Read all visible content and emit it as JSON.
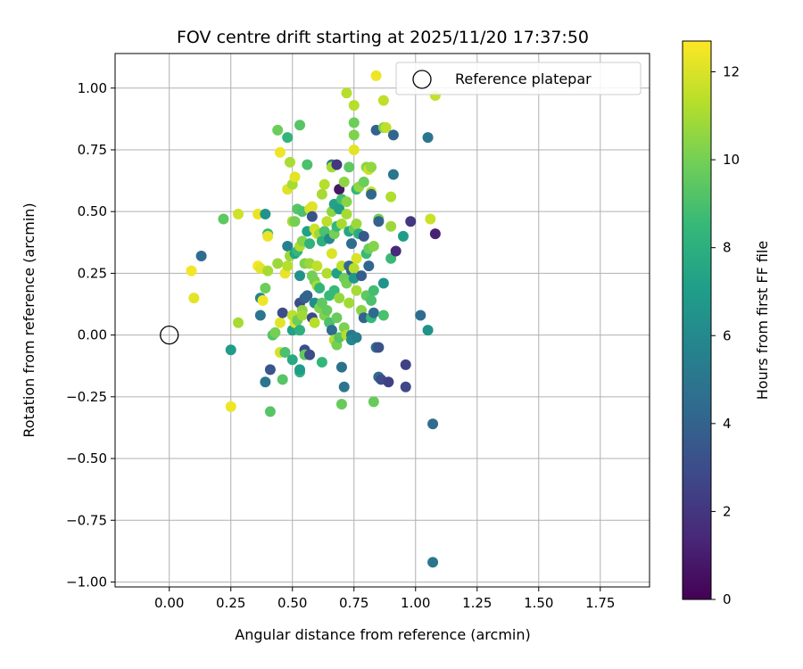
{
  "chart_data": {
    "type": "scatter",
    "title": "FOV centre drift starting at 2025/11/20 17:37:50",
    "xlabel": "Angular distance from reference (arcmin)",
    "ylabel": "Rotation from reference (arcmin)",
    "xlim": [
      -0.22,
      1.95
    ],
    "ylim": [
      -1.02,
      1.14
    ],
    "xticks": [
      0.0,
      0.25,
      0.5,
      0.75,
      1.0,
      1.25,
      1.5,
      1.75
    ],
    "xtick_labels": [
      "0.00",
      "0.25",
      "0.50",
      "0.75",
      "1.00",
      "1.25",
      "1.50",
      "1.75"
    ],
    "yticks": [
      -1.0,
      -0.75,
      -0.5,
      -0.25,
      0.0,
      0.25,
      0.5,
      0.75,
      1.0
    ],
    "ytick_labels": [
      "−1.00",
      "−0.75",
      "−0.50",
      "−0.25",
      "0.00",
      "0.25",
      "0.50",
      "0.75",
      "1.00"
    ],
    "grid": true,
    "legend": {
      "placement": "top-right",
      "entries": [
        "Reference platepar"
      ]
    },
    "reference_point": {
      "x": 0.0,
      "y": 0.0
    },
    "colorbar": {
      "label": "Hours from first FF file",
      "colormap": "viridis",
      "range": [
        0,
        12.7
      ],
      "ticks": [
        0,
        2,
        4,
        6,
        8,
        10,
        12
      ],
      "tick_labels": [
        "0",
        "2",
        "4",
        "6",
        "8",
        "10",
        "12"
      ]
    },
    "colormap_stops": [
      "#440154",
      "#482878",
      "#3e4989",
      "#31688e",
      "#26828e",
      "#1f9e89",
      "#35b779",
      "#6ece58",
      "#b5de2b",
      "#fde725"
    ],
    "points": [
      {
        "x": 0.09,
        "y": 0.26,
        "c": 12.5
      },
      {
        "x": 0.1,
        "y": 0.15,
        "c": 12.2
      },
      {
        "x": 0.13,
        "y": 0.32,
        "c": 4.5
      },
      {
        "x": 0.22,
        "y": 0.47,
        "c": 9.5
      },
      {
        "x": 0.25,
        "y": -0.29,
        "c": 12.4
      },
      {
        "x": 0.25,
        "y": -0.06,
        "c": 7.0
      },
      {
        "x": 0.28,
        "y": 0.49,
        "c": 11.8
      },
      {
        "x": 0.28,
        "y": 0.05,
        "c": 11.0
      },
      {
        "x": 0.36,
        "y": 0.49,
        "c": 12.3
      },
      {
        "x": 0.36,
        "y": 0.28,
        "c": 12.6
      },
      {
        "x": 0.37,
        "y": 0.15,
        "c": 5.8
      },
      {
        "x": 0.37,
        "y": 0.27,
        "c": 12.2
      },
      {
        "x": 0.37,
        "y": 0.08,
        "c": 5.0
      },
      {
        "x": 0.38,
        "y": 0.14,
        "c": 12.4
      },
      {
        "x": 0.39,
        "y": 0.19,
        "c": 9.8
      },
      {
        "x": 0.39,
        "y": 0.49,
        "c": 6.5
      },
      {
        "x": 0.39,
        "y": -0.19,
        "c": 5.0
      },
      {
        "x": 0.4,
        "y": 0.41,
        "c": 8.5
      },
      {
        "x": 0.4,
        "y": 0.4,
        "c": 12.3
      },
      {
        "x": 0.4,
        "y": 0.26,
        "c": 11.0
      },
      {
        "x": 0.41,
        "y": -0.14,
        "c": 3.4
      },
      {
        "x": 0.41,
        "y": -0.31,
        "c": 9.3
      },
      {
        "x": 0.42,
        "y": 0.0,
        "c": 9.2
      },
      {
        "x": 0.43,
        "y": 0.01,
        "c": 10.0
      },
      {
        "x": 0.44,
        "y": 0.83,
        "c": 9.8
      },
      {
        "x": 0.44,
        "y": 0.29,
        "c": 10.8
      },
      {
        "x": 0.45,
        "y": 0.74,
        "c": 12.4
      },
      {
        "x": 0.45,
        "y": -0.07,
        "c": 11.9
      },
      {
        "x": 0.45,
        "y": 0.05,
        "c": 12.2
      },
      {
        "x": 0.46,
        "y": 0.09,
        "c": 3.0
      },
      {
        "x": 0.46,
        "y": -0.18,
        "c": 9.3
      },
      {
        "x": 0.47,
        "y": 0.25,
        "c": 12.3
      },
      {
        "x": 0.47,
        "y": -0.07,
        "c": 9.0
      },
      {
        "x": 0.48,
        "y": 0.36,
        "c": 5.6
      },
      {
        "x": 0.48,
        "y": 0.8,
        "c": 8.3
      },
      {
        "x": 0.48,
        "y": 0.59,
        "c": 12.1
      },
      {
        "x": 0.48,
        "y": 0.28,
        "c": 11.3
      },
      {
        "x": 0.49,
        "y": 0.7,
        "c": 11.1
      },
      {
        "x": 0.49,
        "y": 0.32,
        "c": 10.8
      },
      {
        "x": 0.5,
        "y": 0.61,
        "c": 11.0
      },
      {
        "x": 0.5,
        "y": 0.46,
        "c": 11.0
      },
      {
        "x": 0.5,
        "y": 0.08,
        "c": 11.4
      },
      {
        "x": 0.5,
        "y": 0.02,
        "c": 7.3
      },
      {
        "x": 0.5,
        "y": -0.1,
        "c": 7.7
      },
      {
        "x": 0.51,
        "y": 0.64,
        "c": 12.2
      },
      {
        "x": 0.51,
        "y": 0.46,
        "c": 10.0
      },
      {
        "x": 0.51,
        "y": 0.33,
        "c": 7.4
      },
      {
        "x": 0.51,
        "y": 0.05,
        "c": 12.0
      },
      {
        "x": 0.52,
        "y": 0.51,
        "c": 9.3
      },
      {
        "x": 0.52,
        "y": 0.34,
        "c": 8.4
      },
      {
        "x": 0.52,
        "y": 0.06,
        "c": 9.8
      },
      {
        "x": 0.53,
        "y": 0.85,
        "c": 9.3
      },
      {
        "x": 0.53,
        "y": 0.36,
        "c": 11.2
      },
      {
        "x": 0.53,
        "y": 0.24,
        "c": 6.4
      },
      {
        "x": 0.53,
        "y": 0.13,
        "c": 3.0
      },
      {
        "x": 0.53,
        "y": 0.02,
        "c": 8.0
      },
      {
        "x": 0.53,
        "y": -0.15,
        "c": 8.3
      },
      {
        "x": 0.53,
        "y": -0.14,
        "c": 7.0
      },
      {
        "x": 0.54,
        "y": 0.5,
        "c": 9.0
      },
      {
        "x": 0.54,
        "y": 0.38,
        "c": 10.3
      },
      {
        "x": 0.54,
        "y": 0.1,
        "c": 10.5
      },
      {
        "x": 0.54,
        "y": 0.08,
        "c": 10.9
      },
      {
        "x": 0.55,
        "y": 0.29,
        "c": 10.2
      },
      {
        "x": 0.55,
        "y": 0.15,
        "c": 4.0
      },
      {
        "x": 0.55,
        "y": -0.06,
        "c": 3.0
      },
      {
        "x": 0.55,
        "y": -0.08,
        "c": 9.6
      },
      {
        "x": 0.56,
        "y": 0.69,
        "c": 9.0
      },
      {
        "x": 0.56,
        "y": 0.42,
        "c": 7.2
      },
      {
        "x": 0.56,
        "y": 0.16,
        "c": 4.1
      },
      {
        "x": 0.57,
        "y": 0.51,
        "c": 11.9
      },
      {
        "x": 0.57,
        "y": 0.37,
        "c": 8.2
      },
      {
        "x": 0.57,
        "y": 0.29,
        "c": 10.8
      },
      {
        "x": 0.57,
        "y": -0.08,
        "c": 3.0
      },
      {
        "x": 0.58,
        "y": 0.52,
        "c": 12.1
      },
      {
        "x": 0.58,
        "y": 0.48,
        "c": 3.2
      },
      {
        "x": 0.58,
        "y": 0.24,
        "c": 10.0
      },
      {
        "x": 0.58,
        "y": 0.07,
        "c": 2.8
      },
      {
        "x": 0.59,
        "y": 0.43,
        "c": 11.7
      },
      {
        "x": 0.59,
        "y": 0.22,
        "c": 10.0
      },
      {
        "x": 0.59,
        "y": 0.13,
        "c": 6.2
      },
      {
        "x": 0.59,
        "y": 0.05,
        "c": 11.3
      },
      {
        "x": 0.6,
        "y": 0.41,
        "c": 12.1
      },
      {
        "x": 0.6,
        "y": 0.28,
        "c": 11.5
      },
      {
        "x": 0.6,
        "y": 0.2,
        "c": 11.0
      },
      {
        "x": 0.61,
        "y": 0.41,
        "c": 10.8
      },
      {
        "x": 0.61,
        "y": 0.19,
        "c": 8.3
      },
      {
        "x": 0.61,
        "y": 0.11,
        "c": 10.2
      },
      {
        "x": 0.62,
        "y": 0.57,
        "c": 11.0
      },
      {
        "x": 0.62,
        "y": 0.38,
        "c": 8.0
      },
      {
        "x": 0.62,
        "y": 0.13,
        "c": 9.5
      },
      {
        "x": 0.62,
        "y": -0.11,
        "c": 8.4
      },
      {
        "x": 0.63,
        "y": 0.61,
        "c": 11.3
      },
      {
        "x": 0.63,
        "y": 0.42,
        "c": 9.0
      },
      {
        "x": 0.63,
        "y": 0.08,
        "c": 10.2
      },
      {
        "x": 0.64,
        "y": 0.46,
        "c": 11.4
      },
      {
        "x": 0.64,
        "y": 0.25,
        "c": 11.2
      },
      {
        "x": 0.64,
        "y": 0.1,
        "c": 9.6
      },
      {
        "x": 0.65,
        "y": 0.39,
        "c": 6.0
      },
      {
        "x": 0.65,
        "y": 0.16,
        "c": 8.5
      },
      {
        "x": 0.65,
        "y": 0.05,
        "c": 9.0
      },
      {
        "x": 0.66,
        "y": 0.69,
        "c": 5.0
      },
      {
        "x": 0.66,
        "y": 0.68,
        "c": 11.0
      },
      {
        "x": 0.66,
        "y": 0.5,
        "c": 10.5
      },
      {
        "x": 0.66,
        "y": 0.33,
        "c": 12.0
      },
      {
        "x": 0.66,
        "y": 0.02,
        "c": 4.5
      },
      {
        "x": 0.67,
        "y": 0.53,
        "c": 7.3
      },
      {
        "x": 0.67,
        "y": 0.41,
        "c": 10.0
      },
      {
        "x": 0.67,
        "y": 0.18,
        "c": 8.5
      },
      {
        "x": 0.67,
        "y": -0.02,
        "c": 11.3
      },
      {
        "x": 0.68,
        "y": 0.69,
        "c": 2.0
      },
      {
        "x": 0.68,
        "y": 0.44,
        "c": 8.5
      },
      {
        "x": 0.68,
        "y": 0.25,
        "c": 7.2
      },
      {
        "x": 0.68,
        "y": 0.07,
        "c": 9.7
      },
      {
        "x": 0.68,
        "y": -0.04,
        "c": 10.0
      },
      {
        "x": 0.69,
        "y": 0.59,
        "c": 0.8
      },
      {
        "x": 0.69,
        "y": 0.51,
        "c": 7.0
      },
      {
        "x": 0.69,
        "y": 0.15,
        "c": 10.7
      },
      {
        "x": 0.69,
        "y": -0.01,
        "c": 9.3
      },
      {
        "x": 0.7,
        "y": 0.55,
        "c": 8.8
      },
      {
        "x": 0.7,
        "y": 0.45,
        "c": 11.0
      },
      {
        "x": 0.7,
        "y": 0.28,
        "c": 11.4
      },
      {
        "x": 0.7,
        "y": -0.13,
        "c": 4.6
      },
      {
        "x": 0.7,
        "y": -0.28,
        "c": 9.7
      },
      {
        "x": 0.71,
        "y": 0.62,
        "c": 10.5
      },
      {
        "x": 0.71,
        "y": 0.23,
        "c": 9.8
      },
      {
        "x": 0.71,
        "y": 0.03,
        "c": 10.1
      },
      {
        "x": 0.71,
        "y": -0.21,
        "c": 5.0
      },
      {
        "x": 0.72,
        "y": 0.98,
        "c": 11.3
      },
      {
        "x": 0.72,
        "y": 0.54,
        "c": 10.4
      },
      {
        "x": 0.72,
        "y": 0.49,
        "c": 11.0
      },
      {
        "x": 0.72,
        "y": 0.21,
        "c": 10.0
      },
      {
        "x": 0.72,
        "y": 0.0,
        "c": 11.3
      },
      {
        "x": 0.73,
        "y": 0.68,
        "c": 9.5
      },
      {
        "x": 0.73,
        "y": 0.42,
        "c": 7.5
      },
      {
        "x": 0.73,
        "y": 0.28,
        "c": 4.3
      },
      {
        "x": 0.73,
        "y": 0.13,
        "c": 10.9
      },
      {
        "x": 0.74,
        "y": 0.37,
        "c": 4.5
      },
      {
        "x": 0.74,
        "y": 0.26,
        "c": 4.0
      },
      {
        "x": 0.74,
        "y": 0.0,
        "c": 5.1
      },
      {
        "x": 0.74,
        "y": -0.02,
        "c": 6.0
      },
      {
        "x": 0.75,
        "y": 0.93,
        "c": 11.3
      },
      {
        "x": 0.75,
        "y": 0.86,
        "c": 9.8
      },
      {
        "x": 0.75,
        "y": 0.81,
        "c": 10.2
      },
      {
        "x": 0.75,
        "y": 0.75,
        "c": 12.2
      },
      {
        "x": 0.75,
        "y": 0.43,
        "c": 9.7
      },
      {
        "x": 0.75,
        "y": 0.27,
        "c": 11.3
      },
      {
        "x": 0.75,
        "y": 0.23,
        "c": 6.8
      },
      {
        "x": 0.76,
        "y": 0.59,
        "c": 8.5
      },
      {
        "x": 0.76,
        "y": 0.45,
        "c": 10.8
      },
      {
        "x": 0.76,
        "y": 0.31,
        "c": 12.0
      },
      {
        "x": 0.76,
        "y": 0.18,
        "c": 11.0
      },
      {
        "x": 0.76,
        "y": -0.01,
        "c": 5.5
      },
      {
        "x": 0.77,
        "y": 0.6,
        "c": 10.6
      },
      {
        "x": 0.77,
        "y": 0.41,
        "c": 7.8
      },
      {
        "x": 0.78,
        "y": 0.24,
        "c": 3.8
      },
      {
        "x": 0.78,
        "y": 0.1,
        "c": 10.4
      },
      {
        "x": 0.79,
        "y": 0.62,
        "c": 9.8
      },
      {
        "x": 0.79,
        "y": 0.4,
        "c": 3.5
      },
      {
        "x": 0.79,
        "y": 0.07,
        "c": 4.0
      },
      {
        "x": 0.8,
        "y": 0.68,
        "c": 10.5
      },
      {
        "x": 0.8,
        "y": 0.33,
        "c": 8.6
      },
      {
        "x": 0.8,
        "y": 0.16,
        "c": 9.5
      },
      {
        "x": 0.81,
        "y": 0.67,
        "c": 11.7
      },
      {
        "x": 0.81,
        "y": 0.35,
        "c": 9.8
      },
      {
        "x": 0.81,
        "y": 0.28,
        "c": 4.2
      },
      {
        "x": 0.82,
        "y": 0.68,
        "c": 10.6
      },
      {
        "x": 0.82,
        "y": 0.58,
        "c": 11.7
      },
      {
        "x": 0.82,
        "y": 0.57,
        "c": 4.3
      },
      {
        "x": 0.82,
        "y": 0.14,
        "c": 9.0
      },
      {
        "x": 0.82,
        "y": 0.07,
        "c": 8.5
      },
      {
        "x": 0.83,
        "y": 0.36,
        "c": 10.3
      },
      {
        "x": 0.83,
        "y": 0.18,
        "c": 8.8
      },
      {
        "x": 0.83,
        "y": 0.09,
        "c": 4.4
      },
      {
        "x": 0.83,
        "y": -0.27,
        "c": 9.7
      },
      {
        "x": 0.84,
        "y": 1.05,
        "c": 12.4
      },
      {
        "x": 0.84,
        "y": 0.83,
        "c": 4.0
      },
      {
        "x": 0.84,
        "y": -0.05,
        "c": 4.5
      },
      {
        "x": 0.85,
        "y": 0.47,
        "c": 10.0
      },
      {
        "x": 0.85,
        "y": 0.46,
        "c": 4.0
      },
      {
        "x": 0.85,
        "y": -0.05,
        "c": 3.2
      },
      {
        "x": 0.85,
        "y": -0.17,
        "c": 4.5
      },
      {
        "x": 0.86,
        "y": -0.18,
        "c": 3.0
      },
      {
        "x": 0.87,
        "y": 0.95,
        "c": 11.5
      },
      {
        "x": 0.87,
        "y": 0.84,
        "c": 10.2
      },
      {
        "x": 0.87,
        "y": 0.21,
        "c": 6.5
      },
      {
        "x": 0.87,
        "y": 0.08,
        "c": 9.0
      },
      {
        "x": 0.88,
        "y": 0.84,
        "c": 11.5
      },
      {
        "x": 0.89,
        "y": -0.19,
        "c": 2.5
      },
      {
        "x": 0.9,
        "y": 0.56,
        "c": 11.2
      },
      {
        "x": 0.9,
        "y": 0.44,
        "c": 10.8
      },
      {
        "x": 0.9,
        "y": 0.31,
        "c": 8.6
      },
      {
        "x": 0.91,
        "y": 0.81,
        "c": 4.2
      },
      {
        "x": 0.91,
        "y": 0.65,
        "c": 5.0
      },
      {
        "x": 0.92,
        "y": 0.34,
        "c": 1.5
      },
      {
        "x": 0.95,
        "y": 0.4,
        "c": 7.0
      },
      {
        "x": 0.96,
        "y": -0.12,
        "c": 2.5
      },
      {
        "x": 0.96,
        "y": -0.21,
        "c": 2.8
      },
      {
        "x": 0.98,
        "y": 0.46,
        "c": 2.0
      },
      {
        "x": 1.02,
        "y": 0.08,
        "c": 4.5
      },
      {
        "x": 1.05,
        "y": 0.8,
        "c": 5.0
      },
      {
        "x": 1.05,
        "y": 0.02,
        "c": 6.5
      },
      {
        "x": 1.06,
        "y": 0.47,
        "c": 11.7
      },
      {
        "x": 1.07,
        "y": -0.36,
        "c": 4.5
      },
      {
        "x": 1.07,
        "y": -0.92,
        "c": 5.0
      },
      {
        "x": 1.08,
        "y": 0.97,
        "c": 11.6
      },
      {
        "x": 1.08,
        "y": 0.41,
        "c": 1.2
      }
    ]
  }
}
